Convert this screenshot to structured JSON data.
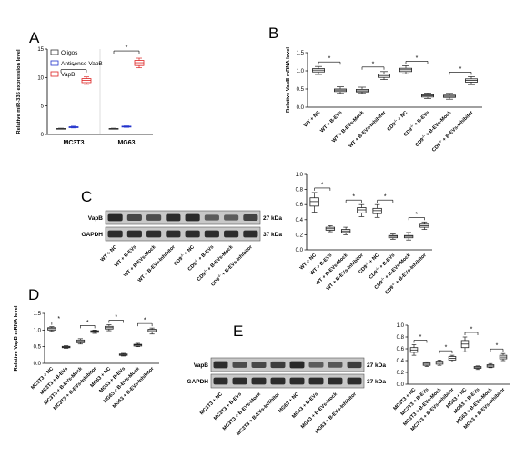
{
  "colors": {
    "box": "#222222",
    "oligos": "#333333",
    "antisense": "#2233cc",
    "vapb": "#dd2222",
    "blot_bg": "#c8c8c8",
    "band": "#1a1a1a"
  },
  "panels": {
    "A": "A",
    "B": "B",
    "C": "C",
    "D": "D",
    "E": "E"
  },
  "sig": "*",
  "blots": {
    "C": {
      "rows": [
        "VapB",
        "GAPDH"
      ],
      "sizes": [
        "27 kDa",
        "37 kDa"
      ]
    },
    "E": {
      "rows": [
        "VapB",
        "GAPDH"
      ],
      "sizes": [
        "27 kDa",
        "37 kDa"
      ]
    }
  },
  "chart_data": [
    {
      "id": "A",
      "type": "box",
      "ylabel": "Relative miR-335 expression level",
      "ylim": [
        0,
        15
      ],
      "yticks": [
        0,
        5,
        10,
        15
      ],
      "categories": [
        "MC3T3",
        "MG63"
      ],
      "legend": [
        "Oligos",
        "Antisense VapB",
        "VapB"
      ],
      "legend_position": "top-left",
      "series": [
        {
          "name": "Oligos",
          "boxes": [
            [
              0.95,
              1.0,
              1.0,
              1.05,
              1.1
            ],
            [
              0.95,
              1.0,
              1.0,
              1.05,
              1.1
            ]
          ]
        },
        {
          "name": "Antisense VapB",
          "boxes": [
            [
              1.15,
              1.2,
              1.3,
              1.35,
              1.45
            ],
            [
              1.25,
              1.3,
              1.4,
              1.45,
              1.5
            ]
          ]
        },
        {
          "name": "VapB",
          "boxes": [
            [
              8.8,
              9.1,
              9.5,
              9.8,
              10.1
            ],
            [
              11.7,
              12.1,
              12.6,
              13.0,
              13.4
            ]
          ]
        }
      ]
    },
    {
      "id": "B",
      "type": "box",
      "ylabel": "Relative VapB mRNA level",
      "ylim": [
        0,
        1.5
      ],
      "yticks": [
        "0.0",
        "0.5",
        "1.0",
        "1.5"
      ],
      "categories": [
        "WT + NC",
        "WT + B-EVs",
        "WT + B-EVs-Mock",
        "WT + B-EVs-Inhibitor",
        "CD9-/- + NC",
        "CD9-/- + B-EVs",
        "CD9-/- + B-EVs-Mock",
        "CD9-/- + B-EVs-Inhibitor"
      ],
      "boxes": [
        [
          0.9,
          0.97,
          1.02,
          1.06,
          1.12
        ],
        [
          0.38,
          0.43,
          0.47,
          0.5,
          0.56
        ],
        [
          0.38,
          0.42,
          0.45,
          0.49,
          0.55
        ],
        [
          0.76,
          0.82,
          0.87,
          0.91,
          0.98
        ],
        [
          0.92,
          0.98,
          1.03,
          1.07,
          1.14
        ],
        [
          0.24,
          0.28,
          0.31,
          0.34,
          0.39
        ],
        [
          0.22,
          0.27,
          0.3,
          0.33,
          0.38
        ],
        [
          0.62,
          0.69,
          0.74,
          0.78,
          0.84
        ]
      ]
    },
    {
      "id": "C",
      "type": "box",
      "ylim": [
        0,
        1.0
      ],
      "yticks": [
        "0.0",
        "0.2",
        "0.4",
        "0.6",
        "0.8",
        "1.0"
      ],
      "categories": [
        "WT + NC",
        "WT + B-EVs",
        "WT + B-EVs-Mock",
        "WT + B-EVs-Inhibitor",
        "CD9-/- + NC",
        "CD9-/- + B-EVs",
        "CD9-/- + B-EVs-Mock",
        "CD9-/- + B-EVs-Inhibitor"
      ],
      "boxes": [
        [
          0.5,
          0.58,
          0.64,
          0.69,
          0.76
        ],
        [
          0.24,
          0.26,
          0.28,
          0.3,
          0.32
        ],
        [
          0.2,
          0.23,
          0.25,
          0.27,
          0.3
        ],
        [
          0.44,
          0.49,
          0.53,
          0.56,
          0.6
        ],
        [
          0.43,
          0.48,
          0.52,
          0.55,
          0.6
        ],
        [
          0.14,
          0.16,
          0.18,
          0.19,
          0.21
        ],
        [
          0.13,
          0.16,
          0.18,
          0.19,
          0.23
        ],
        [
          0.27,
          0.3,
          0.32,
          0.34,
          0.37
        ]
      ]
    },
    {
      "id": "D",
      "type": "box",
      "ylabel": "Relative VapB mRNA level",
      "ylim": [
        0,
        1.5
      ],
      "yticks": [
        "0.0",
        "0.5",
        "1.0",
        "1.5"
      ],
      "categories": [
        "MC3T3 + NC",
        "MC3T3 + B-EVs",
        "MC3T3 + B-EVs-Mock",
        "MC3T3 + B-EVs-Inhibitor",
        "MG63 + NC",
        "MG63 + B-EVs",
        "MG63 + B-EVs-Mock",
        "MG63 + B-EVs-Inhibitor"
      ],
      "boxes": [
        [
          0.96,
          1.0,
          1.04,
          1.07,
          1.1
        ],
        [
          0.45,
          0.47,
          0.49,
          0.51,
          0.53
        ],
        [
          0.58,
          0.62,
          0.66,
          0.7,
          0.74
        ],
        [
          0.9,
          0.93,
          0.96,
          0.98,
          1.0
        ],
        [
          0.98,
          1.03,
          1.07,
          1.11,
          1.16
        ],
        [
          0.22,
          0.24,
          0.26,
          0.28,
          0.3
        ],
        [
          0.5,
          0.52,
          0.55,
          0.57,
          0.6
        ],
        [
          0.88,
          0.94,
          0.98,
          1.02,
          1.06
        ]
      ]
    },
    {
      "id": "E",
      "type": "box",
      "ylim": [
        0,
        1.0
      ],
      "yticks": [
        "0.0",
        "0.2",
        "0.4",
        "0.6",
        "0.8",
        "1.0"
      ],
      "categories": [
        "MC3T3 + NC",
        "MC3T3 + B-EVs",
        "MC3T3 + B-EVs-Mock",
        "MC3T3 + B-EVs-Inhibitor",
        "MG63 + NC",
        "MG63 + B-EVs",
        "MG63 + B-EVs-Mock",
        "MG63 + B-EVs-Inhibitor"
      ],
      "boxes": [
        [
          0.49,
          0.54,
          0.58,
          0.62,
          0.67
        ],
        [
          0.3,
          0.32,
          0.34,
          0.36,
          0.38
        ],
        [
          0.32,
          0.34,
          0.37,
          0.39,
          0.41
        ],
        [
          0.38,
          0.41,
          0.44,
          0.47,
          0.49
        ],
        [
          0.55,
          0.62,
          0.68,
          0.74,
          0.8
        ],
        [
          0.25,
          0.27,
          0.28,
          0.3,
          0.31
        ],
        [
          0.28,
          0.29,
          0.31,
          0.33,
          0.35
        ],
        [
          0.4,
          0.43,
          0.46,
          0.49,
          0.52
        ]
      ]
    }
  ]
}
